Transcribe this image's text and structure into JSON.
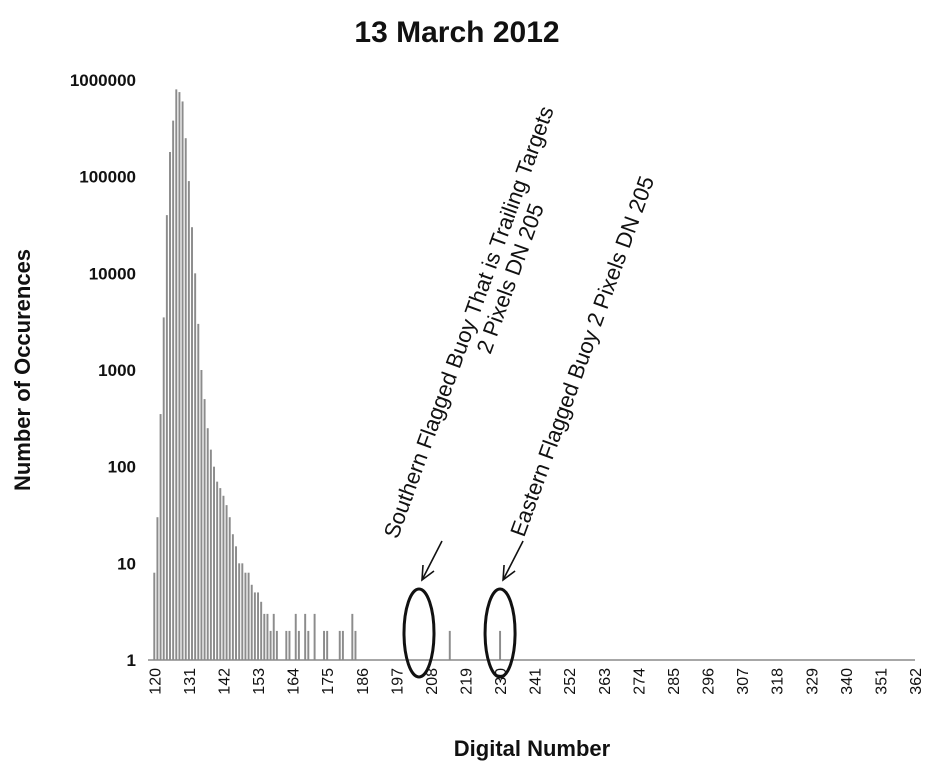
{
  "chart_data": {
    "type": "bar",
    "title": "13 March 2012",
    "xlabel": "Digital Number",
    "ylabel": "Number of Occurences",
    "yscale": "log",
    "ylim": [
      1,
      1000000
    ],
    "xlim": [
      118,
      362
    ],
    "yticks": [
      "1",
      "10",
      "100",
      "1000",
      "10000",
      "100000",
      "1000000"
    ],
    "xticks": [
      "120",
      "131",
      "142",
      "153",
      "164",
      "175",
      "186",
      "197",
      "208",
      "219",
      "230",
      "241",
      "252",
      "263",
      "274",
      "285",
      "296",
      "307",
      "318",
      "329",
      "340",
      "351",
      "362"
    ],
    "bar_color": "#8c8c8c",
    "grid": false,
    "legend": "none",
    "x": [
      120,
      121,
      122,
      123,
      124,
      125,
      126,
      127,
      128,
      129,
      130,
      131,
      132,
      133,
      134,
      135,
      136,
      137,
      138,
      139,
      140,
      141,
      142,
      143,
      144,
      145,
      146,
      147,
      148,
      149,
      150,
      151,
      152,
      153,
      154,
      155,
      156,
      157,
      158,
      159,
      160,
      161,
      162,
      163,
      164,
      165,
      166,
      167,
      168,
      169,
      170,
      171,
      172,
      173,
      174,
      175,
      176,
      177,
      178,
      179,
      180,
      181,
      182,
      183,
      184,
      185,
      186,
      187,
      188,
      189,
      190,
      191,
      192,
      193,
      194,
      195,
      196,
      197,
      198,
      199,
      200,
      201,
      202,
      203,
      204,
      205,
      206,
      207,
      208,
      209,
      210,
      211,
      212,
      213,
      214,
      215,
      216,
      217,
      218,
      219,
      220,
      221,
      222,
      223,
      224,
      225,
      226,
      227,
      228,
      229,
      230
    ],
    "values": [
      8,
      30,
      350,
      3500,
      40000,
      180000,
      380000,
      800000,
      750000,
      600000,
      250000,
      90000,
      30000,
      10000,
      3000,
      1000,
      500,
      250,
      150,
      100,
      70,
      60,
      50,
      40,
      30,
      20,
      15,
      10,
      10,
      8,
      8,
      6,
      5,
      5,
      4,
      3,
      3,
      2,
      3,
      2,
      0,
      0,
      2,
      2,
      0,
      3,
      2,
      0,
      3,
      2,
      0,
      3,
      0,
      0,
      2,
      2,
      0,
      0,
      0,
      2,
      2,
      0,
      0,
      3,
      2,
      0,
      0,
      0,
      0,
      0,
      0,
      0,
      0,
      0,
      0,
      0,
      0,
      0,
      0,
      0,
      0,
      0,
      0,
      0,
      0,
      0,
      0,
      0,
      0,
      0,
      0,
      0,
      0,
      0,
      2,
      0,
      0,
      0,
      0,
      0,
      0,
      0,
      0,
      0,
      0,
      0,
      0,
      0,
      0,
      0,
      2
    ],
    "annotations": [
      {
        "lines": [
          "Southern Flagged Buoy That is Trailing Targets",
          "2 Pixels DN 205"
        ],
        "x": 205,
        "y": 2
      },
      {
        "lines": [
          "Eastern Flagged Buoy 2 Pixels DN 205"
        ],
        "x": 230,
        "y": 2
      }
    ]
  }
}
